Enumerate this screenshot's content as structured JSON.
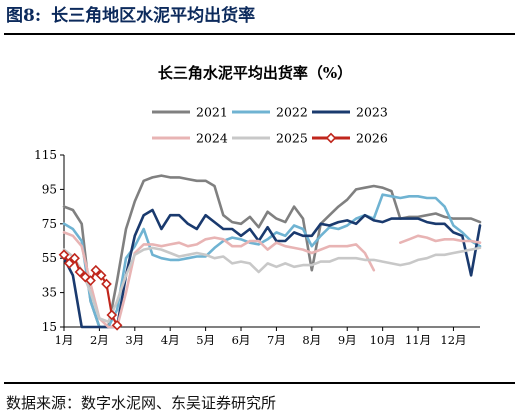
{
  "figure": {
    "label": "图8:",
    "title": "长三角地区水泥平均出货率",
    "source": "数据来源：数字水泥网、东吴证券研究所"
  },
  "chart_data": {
    "type": "line",
    "title": "长三角水泥平均出货率（%）",
    "xlabel": "",
    "ylabel": "",
    "x_ticks": [
      "1月",
      "2月",
      "3月",
      "4月",
      "5月",
      "6月",
      "7月",
      "8月",
      "9月",
      "10月",
      "11月",
      "12月"
    ],
    "xlim": [
      1,
      12.75
    ],
    "ylim": [
      15,
      115
    ],
    "y_ticks": [
      15,
      35,
      55,
      75,
      95,
      115
    ],
    "legend_position": "top",
    "grid": false,
    "series": [
      {
        "name": "2021",
        "color": "#808080",
        "marker": false,
        "x": [
          1.0,
          1.25,
          1.5,
          1.75,
          2.0,
          2.25,
          2.5,
          2.75,
          3.0,
          3.25,
          3.5,
          3.75,
          4.0,
          4.25,
          4.5,
          4.75,
          5.0,
          5.25,
          5.5,
          5.75,
          6.0,
          6.25,
          6.5,
          6.75,
          7.0,
          7.25,
          7.5,
          7.75,
          8.0,
          8.25,
          8.5,
          8.75,
          9.0,
          9.25,
          9.5,
          9.75,
          10.0,
          10.25,
          10.5,
          10.75,
          11.0,
          11.25,
          11.5,
          11.75,
          12.0,
          12.25,
          12.5,
          12.75
        ],
        "y": [
          85,
          83,
          75,
          30,
          15,
          15,
          42,
          72,
          88,
          100,
          102,
          103,
          102,
          102,
          101,
          100,
          100,
          97,
          80,
          76,
          75,
          79,
          73,
          82,
          78,
          76,
          85,
          78,
          48,
          75,
          80,
          85,
          89,
          95,
          96,
          97,
          96,
          94,
          78,
          79,
          79,
          80,
          81,
          79,
          78,
          78,
          78,
          76
        ]
      },
      {
        "name": "2022",
        "color": "#6fb3d2",
        "marker": false,
        "x": [
          1.0,
          1.25,
          1.5,
          1.75,
          2.0,
          2.25,
          2.5,
          2.75,
          3.0,
          3.25,
          3.5,
          3.75,
          4.0,
          4.25,
          4.5,
          4.75,
          5.0,
          5.25,
          5.5,
          5.75,
          6.0,
          6.25,
          6.5,
          6.75,
          7.0,
          7.25,
          7.5,
          7.75,
          8.0,
          8.25,
          8.5,
          8.75,
          9.0,
          9.25,
          9.5,
          9.75,
          10.0,
          10.25,
          10.5,
          10.75,
          11.0,
          11.25,
          11.5,
          11.75,
          12.0,
          12.25,
          12.5,
          12.75
        ],
        "y": [
          75,
          72,
          65,
          30,
          15,
          15,
          25,
          55,
          62,
          72,
          57,
          55,
          54,
          54,
          55,
          56,
          56,
          61,
          65,
          67,
          66,
          64,
          63,
          66,
          70,
          68,
          74,
          72,
          62,
          68,
          73,
          72,
          74,
          78,
          80,
          78,
          92,
          91,
          90,
          91,
          91,
          90,
          90,
          85,
          74,
          70,
          65,
          62
        ]
      },
      {
        "name": "2023",
        "color": "#1a3a6e",
        "marker": false,
        "x": [
          1.0,
          1.25,
          1.5,
          1.75,
          2.0,
          2.25,
          2.5,
          2.75,
          3.0,
          3.25,
          3.5,
          3.75,
          4.0,
          4.25,
          4.5,
          4.75,
          5.0,
          5.25,
          5.5,
          5.75,
          6.0,
          6.25,
          6.5,
          6.75,
          7.0,
          7.25,
          7.5,
          7.75,
          8.0,
          8.25,
          8.5,
          8.75,
          9.0,
          9.25,
          9.5,
          9.75,
          10.0,
          10.25,
          10.5,
          10.75,
          11.0,
          11.25,
          11.5,
          11.75,
          12.0,
          12.25,
          12.5,
          12.75
        ],
        "y": [
          55,
          45,
          15,
          15,
          15,
          15,
          15,
          45,
          68,
          80,
          83,
          72,
          80,
          80,
          75,
          72,
          80,
          76,
          72,
          72,
          68,
          72,
          65,
          73,
          65,
          65,
          70,
          68,
          68,
          75,
          74,
          76,
          77,
          75,
          80,
          77,
          76,
          78,
          78,
          78,
          78,
          76,
          75,
          75,
          70,
          68,
          45,
          74
        ]
      },
      {
        "name": "2024",
        "color": "#e8b4b4",
        "marker": false,
        "x": [
          1.0,
          1.25,
          1.5,
          1.75,
          2.0,
          2.25,
          2.5,
          2.75,
          3.0,
          3.25,
          3.5,
          3.75,
          4.0,
          4.25,
          4.5,
          4.75,
          5.0,
          5.25,
          5.5,
          5.75,
          6.0,
          6.25,
          6.5,
          6.75,
          7.0,
          7.25,
          7.5,
          7.75,
          8.0,
          8.25,
          8.5,
          8.75,
          9.0,
          9.25,
          9.5,
          9.75,
          10.0,
          10.25,
          10.5,
          10.75,
          11.0,
          11.25,
          11.5,
          11.75,
          12.0,
          12.25,
          12.5,
          12.75
        ],
        "y": [
          70,
          68,
          62,
          40,
          20,
          15,
          15,
          35,
          58,
          63,
          63,
          62,
          63,
          64,
          62,
          63,
          66,
          67,
          66,
          62,
          62,
          65,
          65,
          60,
          64,
          62,
          61,
          60,
          58,
          60,
          62,
          62,
          62,
          63,
          58,
          48,
          null,
          null,
          64,
          66,
          68,
          67,
          65,
          66,
          66,
          65,
          65,
          64
        ]
      },
      {
        "name": "2025",
        "color": "#c8c8c8",
        "marker": false,
        "x": [
          1.0,
          1.25,
          1.5,
          1.75,
          2.0,
          2.25,
          2.5,
          2.75,
          3.0,
          3.25,
          3.5,
          3.75,
          4.0,
          4.25,
          4.5,
          4.75,
          5.0,
          5.25,
          5.5,
          5.75,
          6.0,
          6.25,
          6.5,
          6.75,
          7.0,
          7.25,
          7.5,
          7.75,
          8.0,
          8.25,
          8.5,
          8.75,
          9.0,
          9.25,
          9.5,
          9.75,
          10.0,
          10.25,
          10.5,
          10.75,
          11.0,
          11.25,
          11.5,
          11.75,
          12.0,
          12.25,
          12.5,
          12.75
        ],
        "y": [
          60,
          56,
          48,
          35,
          20,
          18,
          30,
          45,
          57,
          60,
          61,
          60,
          58,
          56,
          57,
          58,
          57,
          55,
          56,
          52,
          53,
          52,
          47,
          52,
          50,
          52,
          50,
          51,
          51,
          53,
          53,
          55,
          55,
          55,
          54,
          54,
          53,
          52,
          51,
          52,
          54,
          55,
          57,
          57,
          58,
          59,
          60,
          61
        ]
      },
      {
        "name": "2026",
        "color": "#c0261c",
        "marker": true,
        "x": [
          1.0,
          1.15,
          1.3,
          1.45,
          1.6,
          1.75,
          1.9,
          2.05,
          2.2,
          2.35,
          2.5
        ],
        "y": [
          57,
          52,
          55,
          47,
          44,
          42,
          48,
          45,
          40,
          22,
          16
        ]
      }
    ]
  }
}
